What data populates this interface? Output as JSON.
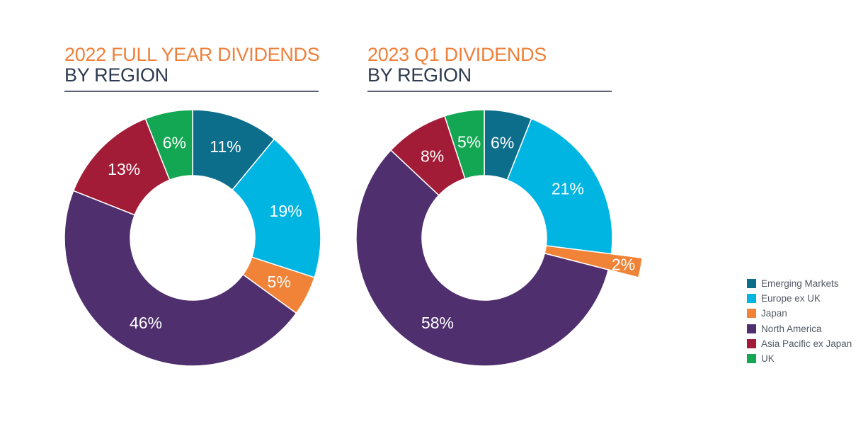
{
  "categories": [
    "Emerging Markets",
    "Europe ex UK",
    "Japan",
    "North America",
    "Asia Pacific ex Japan",
    "UK"
  ],
  "colors": {
    "Emerging Markets": "#0d6e8c",
    "Europe ex UK": "#00b5e2",
    "Japan": "#f08338",
    "North America": "#4f2f6e",
    "Asia Pacific ex Japan": "#a31c37",
    "UK": "#13a753"
  },
  "chart_data": [
    {
      "type": "pie",
      "title_line1": "2022 FULL YEAR DIVIDENDS",
      "title_line2": "BY REGION",
      "slices": [
        {
          "category": "Emerging Markets",
          "value": 11,
          "label": "11%"
        },
        {
          "category": "Europe ex UK",
          "value": 19,
          "label": "19%"
        },
        {
          "category": "Japan",
          "value": 5,
          "label": "5%"
        },
        {
          "category": "North America",
          "value": 46,
          "label": "46%"
        },
        {
          "category": "Asia Pacific ex Japan",
          "value": 13,
          "label": "13%"
        },
        {
          "category": "UK",
          "value": 6,
          "label": "6%"
        }
      ]
    },
    {
      "type": "pie",
      "title_line1": "2023 Q1 DIVIDENDS",
      "title_line2": "BY REGION",
      "slices": [
        {
          "category": "Emerging Markets",
          "value": 6,
          "label": "6%"
        },
        {
          "category": "Europe ex UK",
          "value": 21,
          "label": "21%"
        },
        {
          "category": "Japan",
          "value": 2,
          "label": "2%"
        },
        {
          "category": "North America",
          "value": 58,
          "label": "58%"
        },
        {
          "category": "Asia Pacific ex Japan",
          "value": 8,
          "label": "8%"
        },
        {
          "category": "UK",
          "value": 5,
          "label": "5%"
        }
      ]
    }
  ],
  "legend": {
    "position": "right",
    "items": [
      "Emerging Markets",
      "Europe ex UK",
      "Japan",
      "North America",
      "Asia Pacific ex Japan",
      "UK"
    ]
  }
}
